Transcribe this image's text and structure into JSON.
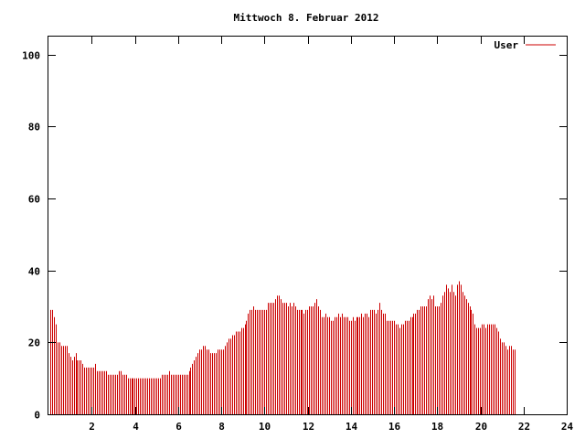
{
  "chart_data": {
    "type": "bar",
    "title": "Mittwoch 8. Februar 2012",
    "xlabel": "",
    "ylabel": "",
    "xlim": [
      0,
      24
    ],
    "ylim": [
      0,
      105
    ],
    "x_ticks": [
      "2",
      "4",
      "6",
      "8",
      "10",
      "12",
      "14",
      "16",
      "18",
      "20",
      "22",
      "24"
    ],
    "y_ticks": [
      "0",
      "20",
      "40",
      "60",
      "80",
      "100"
    ],
    "grid": false,
    "legend_position": "top-right",
    "bar_color": "#cc0000",
    "series": [
      {
        "name": "User",
        "x_start": 0.0833,
        "x_step": 0.0833,
        "values": [
          29,
          29,
          27,
          25,
          20,
          20,
          19,
          19,
          19,
          19,
          17,
          16,
          15,
          16,
          17,
          15,
          15,
          15,
          14,
          13,
          13,
          13,
          13,
          13,
          13,
          14,
          12,
          12,
          12,
          12,
          12,
          12,
          11,
          11,
          11,
          11,
          11,
          11,
          12,
          12,
          11,
          11,
          11,
          10,
          10,
          10,
          10,
          10,
          10,
          10,
          10,
          10,
          10,
          10,
          10,
          10,
          10,
          10,
          10,
          10,
          10,
          10,
          11,
          11,
          11,
          11,
          12,
          11,
          11,
          11,
          11,
          11,
          11,
          11,
          11,
          11,
          11,
          12,
          13,
          14,
          15,
          16,
          17,
          18,
          18,
          19,
          19,
          18,
          18,
          17,
          17,
          17,
          17,
          18,
          18,
          18,
          18,
          19,
          20,
          21,
          21,
          22,
          22,
          23,
          23,
          23,
          24,
          24,
          25,
          26,
          28,
          29,
          29,
          30,
          29,
          29,
          29,
          29,
          29,
          29,
          29,
          31,
          31,
          31,
          31,
          32,
          33,
          33,
          32,
          31,
          31,
          31,
          30,
          31,
          30,
          31,
          30,
          29,
          29,
          29,
          29,
          28,
          29,
          29,
          30,
          30,
          30,
          31,
          32,
          30,
          29,
          27,
          27,
          28,
          27,
          27,
          26,
          26,
          27,
          27,
          28,
          27,
          28,
          27,
          27,
          27,
          26,
          26,
          27,
          26,
          27,
          27,
          27,
          28,
          27,
          28,
          28,
          27,
          29,
          29,
          29,
          28,
          29,
          31,
          29,
          28,
          28,
          26,
          26,
          26,
          26,
          26,
          25,
          25,
          24,
          25,
          25,
          26,
          26,
          26,
          27,
          27,
          28,
          28,
          29,
          29,
          30,
          30,
          30,
          30,
          32,
          33,
          32,
          33,
          30,
          30,
          30,
          31,
          33,
          34,
          36,
          35,
          34,
          36,
          34,
          33,
          36,
          37,
          36,
          34,
          33,
          32,
          31,
          30,
          29,
          28,
          25,
          24,
          24,
          24,
          25,
          25,
          24,
          25,
          25,
          25,
          25,
          25,
          24,
          23,
          21,
          20,
          20,
          19,
          18,
          19,
          19,
          18,
          18
        ]
      }
    ]
  }
}
